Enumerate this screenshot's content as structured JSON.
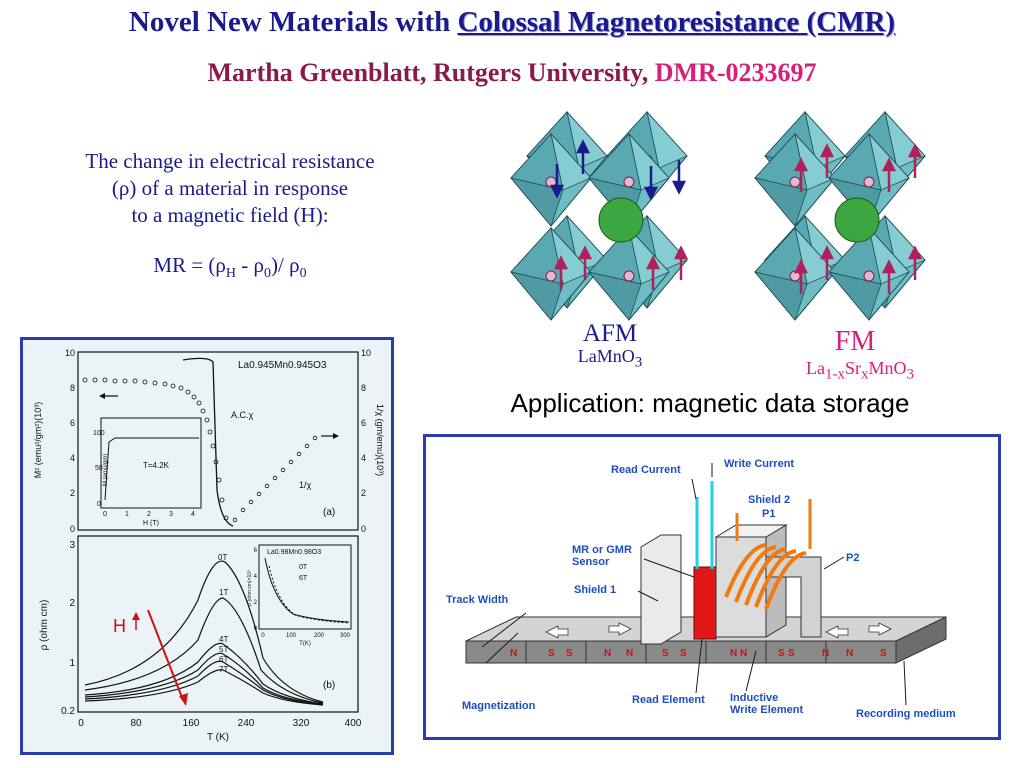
{
  "slide": {
    "title_prefix": "Novel New Materials with ",
    "title_highlight": "Colossal Magnetoresistance (CMR)",
    "subtitle_author": "Martha Greenblatt, Rutgers University, ",
    "subtitle_grant": "DMR-0233697"
  },
  "definition": {
    "line1": "The change in electrical resistance",
    "line2": "(ρ) of a material in response",
    "line3": "to a magnetic field (H):",
    "formula_lead": "MR = (ρ",
    "formula_sub_h": "H",
    "formula_mid": " - ρ",
    "formula_sub_0a": "0",
    "formula_tail": ")/ ρ",
    "formula_sub_0b": "0"
  },
  "structures": {
    "afm_label": "AFM",
    "afm_compound_a": "LaMnO",
    "afm_compound_sub": "3",
    "fm_label": "FM",
    "fm_compound_a": "La",
    "fm_compound_sub1": "1-x",
    "fm_compound_b": "Sr",
    "fm_compound_sub2": "x",
    "fm_compound_c": "MnO",
    "fm_compound_sub3": "3"
  },
  "application": {
    "heading": "Application: magnetic data storage"
  },
  "figure_a": {
    "compound": "La0.945Mn0.945O3",
    "ylabel_left": "M² (emu²/gm²)(10³)",
    "ylabel_right": "1/χ (gm/emu)(10³)",
    "left_ticks": [
      "10",
      "8",
      "6",
      "4",
      "2",
      "0"
    ],
    "right_ticks": [
      "10",
      "8",
      "6",
      "4",
      "2",
      "0"
    ],
    "curve_label_ac": "A.C.χ",
    "curve_label_inv": "1/χ",
    "panel_label": "(a)",
    "inset_ylabel": "M (emu/gm)",
    "inset_xlabel": "H (T)",
    "inset_text": "T=4.2K",
    "inset_yticks": [
      "100",
      "50",
      "0"
    ],
    "inset_xticks": [
      "0",
      "1",
      "2",
      "3",
      "4"
    ]
  },
  "figure_b": {
    "ylabel": "ρ (ohm cm)",
    "xlabel": "T (K)",
    "yticks": [
      "3",
      "2",
      "1",
      "0.2"
    ],
    "xticks": [
      "0",
      "80",
      "160",
      "240",
      "320",
      "400"
    ],
    "curve_labels": [
      "0T",
      "1T",
      "4T",
      "5T",
      "6T",
      "7T"
    ],
    "h_label": "H",
    "panel_label": "(b)",
    "inset_compound": "La0.98Mn0.98O3",
    "inset_ylabel": "ρ (ohm cm)×10³",
    "inset_xlabel": "T(K)",
    "inset_curves": [
      "0T",
      "6T"
    ],
    "inset_yticks": [
      "6",
      "4",
      "2",
      "0"
    ],
    "inset_xticks": [
      "0",
      "100",
      "200",
      "300"
    ]
  },
  "head_diagram": {
    "read_current": "Read Current",
    "write_current": "Write Current",
    "shield2": "Shield 2",
    "p1": "P1",
    "p2": "P2",
    "mr_sensor_l1": "MR or GMR",
    "mr_sensor_l2": "Sensor",
    "shield1": "Shield 1",
    "track_width": "Track Width",
    "magnetization": "Magnetization",
    "read_element": "Read Element",
    "inductive_l1": "Inductive",
    "inductive_l2": "Write Element",
    "recording_medium": "Recording medium",
    "poles": [
      "N",
      "S",
      "S",
      "N",
      "N",
      "S",
      "S",
      "N",
      "N",
      "S",
      "S",
      "N",
      "N",
      "S"
    ]
  },
  "colors": {
    "title": "#1a1a8c",
    "subtitle": "#8b1a4a",
    "accent_pink": "#d8207a",
    "octahedron": "#6fbcc4",
    "sphere": "#3ca640",
    "frame": "#2a3db0"
  }
}
